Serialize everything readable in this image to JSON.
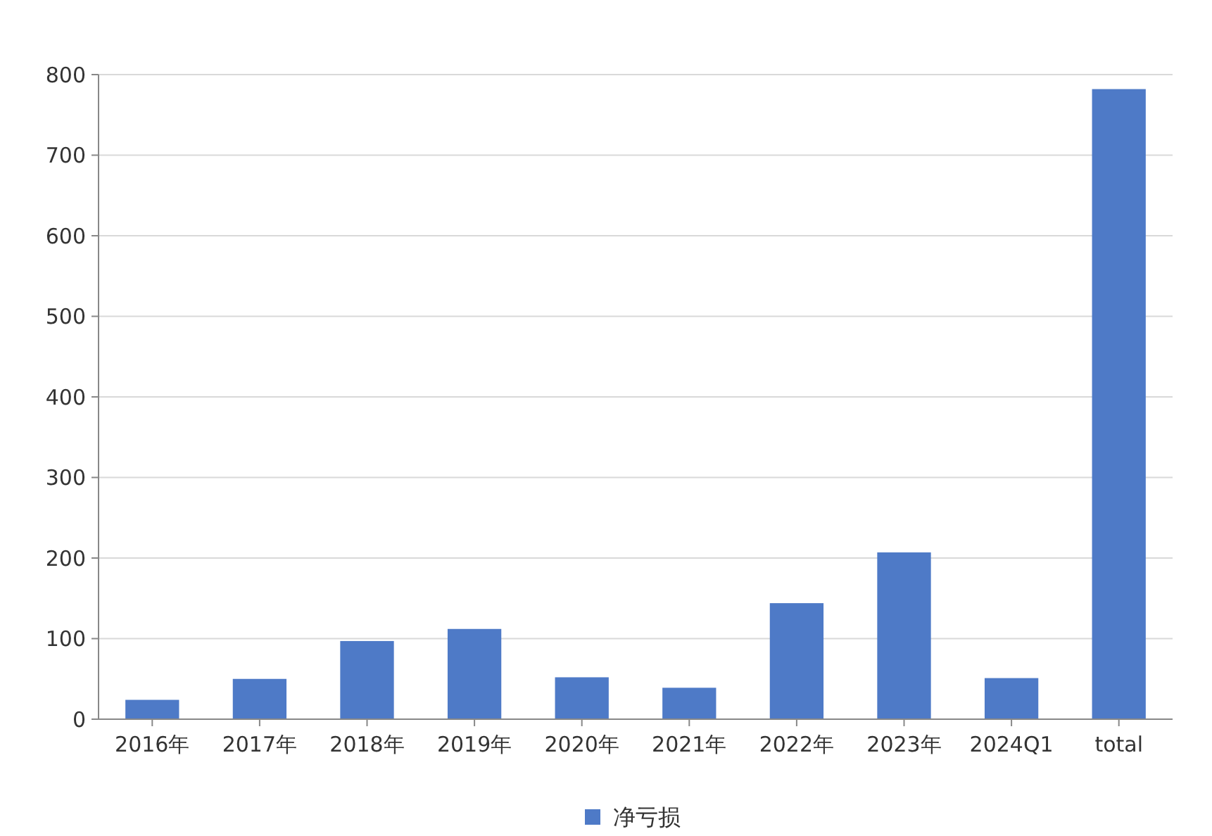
{
  "chart_data": {
    "type": "bar",
    "categories": [
      "2016年",
      "2017年",
      "2018年",
      "2019年",
      "2020年",
      "2021年",
      "2022年",
      "2023年",
      "2024Q1",
      "total"
    ],
    "series": [
      {
        "name": "净亏损",
        "color": "#4e7ac7",
        "values": [
          24,
          50,
          97,
          112,
          52,
          39,
          144,
          207,
          51,
          782
        ]
      }
    ],
    "ylim": [
      0,
      800
    ],
    "yticks": [
      0,
      100,
      200,
      300,
      400,
      500,
      600,
      700,
      800
    ],
    "grid": "y",
    "legend": "bottom"
  }
}
